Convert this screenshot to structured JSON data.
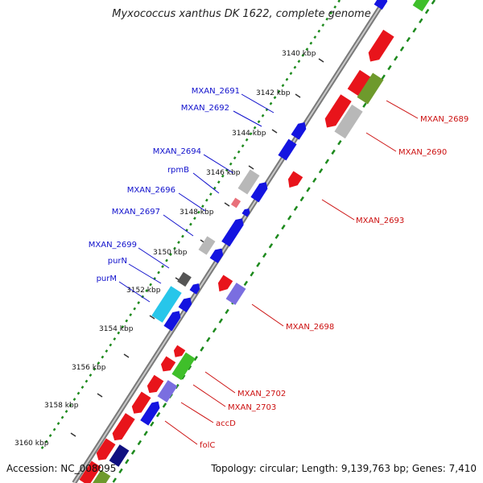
{
  "title": "Myxococcus xanthus DK 1622, complete genome",
  "accession_text": "Accession: NC_008095",
  "topology_text": "Topology: circular; Length: 9,139,763 bp; Genes: 7,410",
  "kbp_ticks": [
    "3140 kbp",
    "3142 kbp",
    "3144 kbp",
    "3146 kbp",
    "3148 kbp",
    "3150 kbp",
    "3152 kbp",
    "3154 kbp",
    "3156 kbp",
    "3158 kbp",
    "3160 kbp"
  ],
  "gene_labels_left": [
    "MXAN_2691",
    "MXAN_2692",
    "MXAN_2694",
    "rpmB",
    "MXAN_2696",
    "MXAN_2697",
    "MXAN_2699",
    "purN",
    "purM"
  ],
  "gene_labels_right": [
    "MXAN_2689",
    "MXAN_2690",
    "MXAN_2693",
    "MXAN_2698",
    "MXAN_2702",
    "MXAN_2703",
    "accD",
    "folC"
  ],
  "colors": {
    "forward": "#e8141b",
    "reverse": "#1414e0",
    "rna": "#b8b8b8",
    "green": "#3fbf2a",
    "olive": "#6e9a2c",
    "purple": "#7a6ee0",
    "cyan": "#27c6ea",
    "pink": "#e8707a",
    "navy": "#101080",
    "dark": "#555555",
    "label_left": "#1010cc",
    "label_right": "#cc1010",
    "gc_dots": "#1d8a1d"
  }
}
